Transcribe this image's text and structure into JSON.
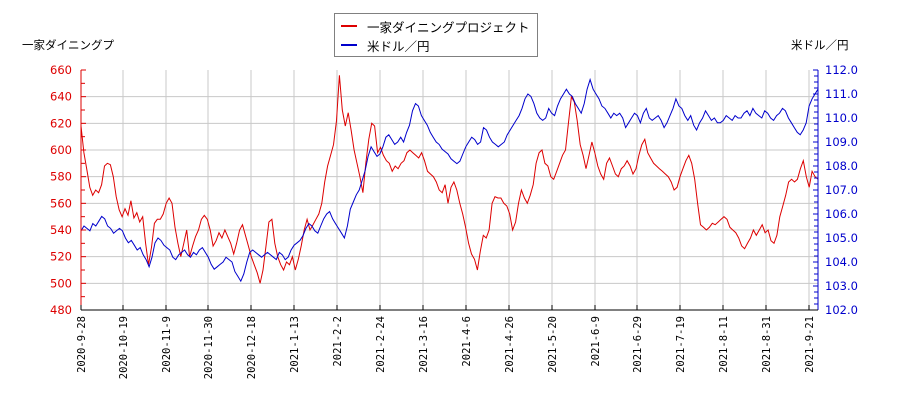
{
  "chart_data": {
    "type": "line",
    "title": "",
    "legend": [
      {
        "name": "一家ダイニングプロジェクト",
        "color": "#dd0000",
        "axis": "left"
      },
      {
        "name": "米ドル／円",
        "color": "#0000cc",
        "axis": "right"
      }
    ],
    "legend_position": "top-center",
    "ylabel_left": "一家ダイニングプ",
    "ylabel_right": "米ドル／円",
    "xlabel": "",
    "ylim_left": [
      480,
      660
    ],
    "ylim_right": [
      102.0,
      112.0
    ],
    "yticks_left": [
      "480",
      "500",
      "520",
      "540",
      "560",
      "580",
      "600",
      "620",
      "640",
      "660"
    ],
    "yticks_right": [
      "102.0",
      "103.0",
      "104.0",
      "105.0",
      "106.0",
      "107.0",
      "108.0",
      "109.0",
      "110.0",
      "111.0",
      "112.0"
    ],
    "xticks": [
      "2020-9-28",
      "2020-10-19",
      "2020-11-9",
      "2020-11-30",
      "2020-12-18",
      "2021-1-13",
      "2021-2-2",
      "2021-2-24",
      "2021-3-16",
      "2021-4-6",
      "2021-4-26",
      "2021-5-20",
      "2021-6-9",
      "2021-6-29",
      "2021-7-19",
      "2021-8-11",
      "2021-8-31",
      "2021-9-21"
    ],
    "grid": true,
    "series": [
      {
        "name": "一家ダイニングプロジェクト",
        "axis": "left",
        "color": "#dd0000",
        "values": [
          618,
          598,
          585,
          572,
          566,
          570,
          568,
          574,
          588,
          590,
          589,
          580,
          565,
          555,
          550,
          556,
          551,
          562,
          549,
          553,
          546,
          550,
          530,
          514,
          527,
          545,
          548,
          548,
          552,
          560,
          564,
          560,
          542,
          530,
          520,
          530,
          540,
          520,
          528,
          535,
          540,
          548,
          551,
          548,
          540,
          528,
          532,
          538,
          534,
          540,
          535,
          530,
          522,
          530,
          540,
          544,
          536,
          528,
          520,
          514,
          508,
          500,
          510,
          528,
          546,
          548,
          530,
          520,
          514,
          510,
          516,
          514,
          520,
          510,
          518,
          528,
          540,
          548,
          540,
          544,
          548,
          552,
          560,
          576,
          588,
          596,
          604,
          622,
          656,
          630,
          618,
          628,
          615,
          600,
          590,
          580,
          568,
          590,
          608,
          620,
          618,
          598,
          602,
          596,
          592,
          590,
          584,
          588,
          586,
          590,
          592,
          598,
          600,
          598,
          596,
          594,
          598,
          592,
          584,
          582,
          580,
          576,
          570,
          568,
          574,
          560,
          572,
          576,
          570,
          560,
          552,
          542,
          530,
          522,
          518,
          510,
          524,
          536,
          534,
          540,
          560,
          565,
          564,
          564,
          560,
          558,
          552,
          540,
          546,
          560,
          570,
          564,
          560,
          566,
          574,
          590,
          598,
          600,
          590,
          588,
          580,
          578,
          584,
          590,
          596,
          600,
          620,
          640,
          636,
          622,
          604,
          596,
          586,
          596,
          606,
          598,
          588,
          582,
          578,
          590,
          594,
          588,
          582,
          580,
          586,
          588,
          592,
          588,
          582,
          586,
          596,
          604,
          608,
          598,
          594,
          590,
          588,
          586,
          584,
          582,
          580,
          576,
          570,
          572,
          580,
          586,
          592,
          596,
          590,
          578,
          560,
          544,
          542,
          540,
          542,
          545,
          544,
          546,
          548,
          550,
          548,
          542,
          540,
          538,
          534,
          528,
          526,
          530,
          534,
          540,
          536,
          540,
          544,
          538,
          540,
          532,
          530,
          536,
          550,
          558,
          566,
          576,
          578,
          576,
          578,
          586,
          592,
          580,
          572,
          584,
          580,
          578
        ]
      },
      {
        "name": "米ドル／円",
        "axis": "right",
        "color": "#0000cc",
        "values": [
          105.3,
          105.5,
          105.4,
          105.3,
          105.6,
          105.5,
          105.7,
          105.9,
          105.8,
          105.5,
          105.4,
          105.2,
          105.3,
          105.4,
          105.3,
          105.0,
          104.8,
          104.9,
          104.7,
          104.5,
          104.6,
          104.3,
          104.1,
          103.8,
          104.2,
          104.8,
          105.0,
          104.9,
          104.7,
          104.6,
          104.5,
          104.2,
          104.1,
          104.3,
          104.4,
          104.5,
          104.3,
          104.2,
          104.4,
          104.3,
          104.5,
          104.6,
          104.4,
          104.2,
          103.9,
          103.7,
          103.8,
          103.9,
          104.0,
          104.2,
          104.1,
          104.0,
          103.6,
          103.4,
          103.2,
          103.5,
          104.0,
          104.4,
          104.5,
          104.4,
          104.3,
          104.2,
          104.3,
          104.4,
          104.3,
          104.2,
          104.1,
          104.4,
          104.3,
          104.1,
          104.2,
          104.5,
          104.7,
          104.8,
          104.9,
          105.1,
          105.4,
          105.6,
          105.5,
          105.3,
          105.2,
          105.5,
          105.8,
          106.0,
          106.1,
          105.8,
          105.6,
          105.4,
          105.2,
          105.0,
          105.5,
          106.2,
          106.5,
          106.8,
          107.0,
          107.4,
          107.8,
          108.4,
          108.8,
          108.6,
          108.4,
          108.5,
          108.8,
          109.2,
          109.3,
          109.1,
          108.9,
          109.0,
          109.2,
          109.0,
          109.4,
          109.7,
          110.3,
          110.6,
          110.5,
          110.1,
          109.9,
          109.7,
          109.4,
          109.2,
          109.0,
          108.9,
          108.7,
          108.6,
          108.5,
          108.3,
          108.2,
          108.1,
          108.2,
          108.5,
          108.8,
          109.0,
          109.2,
          109.1,
          108.9,
          109.0,
          109.6,
          109.5,
          109.2,
          109.0,
          108.9,
          108.8,
          108.9,
          109.0,
          109.3,
          109.5,
          109.7,
          109.9,
          110.1,
          110.4,
          110.8,
          111.0,
          110.9,
          110.6,
          110.2,
          110.0,
          109.9,
          110.0,
          110.4,
          110.2,
          110.1,
          110.5,
          110.8,
          111.0,
          111.2,
          111.0,
          110.9,
          110.6,
          110.4,
          110.2,
          110.6,
          111.2,
          111.6,
          111.2,
          111.0,
          110.8,
          110.5,
          110.4,
          110.2,
          110.0,
          110.2,
          110.1,
          110.2,
          110.0,
          109.6,
          109.8,
          110.0,
          110.2,
          110.1,
          109.8,
          110.2,
          110.4,
          110.0,
          109.9,
          110.0,
          110.1,
          109.9,
          109.6,
          109.8,
          110.1,
          110.4,
          110.8,
          110.5,
          110.4,
          110.1,
          109.9,
          110.1,
          109.7,
          109.5,
          109.8,
          110.0,
          110.3,
          110.1,
          109.9,
          110.0,
          109.8,
          109.8,
          109.9,
          110.1,
          110.0,
          109.9,
          110.1,
          110.0,
          110.0,
          110.2,
          110.3,
          110.1,
          110.4,
          110.2,
          110.1,
          110.0,
          110.3,
          110.2,
          110.0,
          109.9,
          110.1,
          110.2,
          110.4,
          110.3,
          110.0,
          109.8,
          109.6,
          109.4,
          109.3,
          109.5,
          109.8,
          110.5,
          110.8,
          111.0,
          111.2
        ]
      }
    ]
  }
}
